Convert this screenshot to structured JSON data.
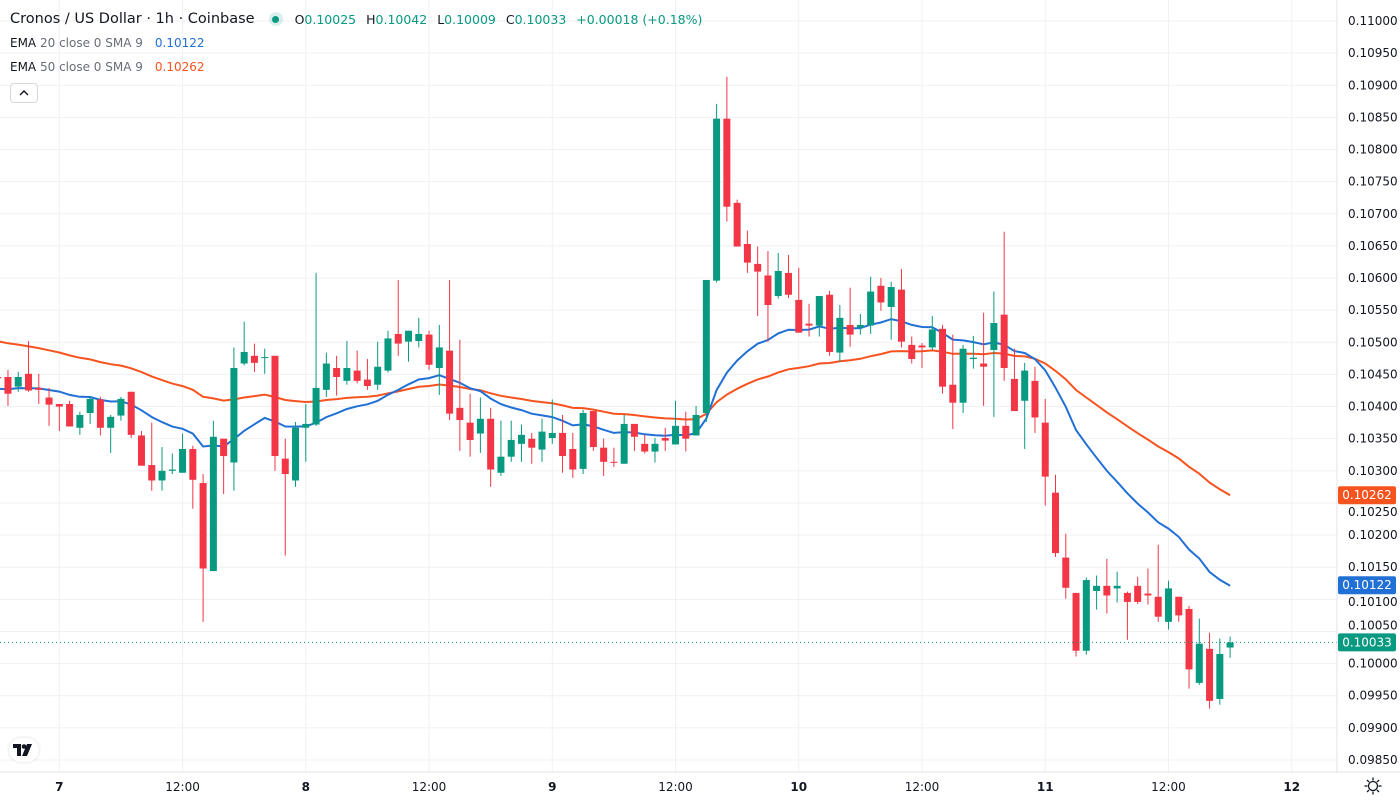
{
  "header": {
    "title": "Cronos / US Dollar · 1h · Coinbase",
    "ohlc": {
      "o_label": "O",
      "o": "0.10025",
      "h_label": "H",
      "h": "0.10042",
      "l_label": "L",
      "l": "0.10009",
      "c_label": "C",
      "c": "0.10033",
      "change": "+0.00018 (+0.18%)"
    },
    "indicators": [
      {
        "name": "EMA",
        "params": "20 close 0 SMA 9",
        "value": "0.10122",
        "color": "#2170d6"
      },
      {
        "name": "EMA",
        "params": "50 close 0 SMA 9",
        "value": "0.10262",
        "color": "#f7531f"
      }
    ],
    "collapse_icon": "chevron-up-icon"
  },
  "colors": {
    "up": "#089981",
    "down": "#F23645",
    "ema20": "#2170d6",
    "ema50": "#f7531f",
    "grid": "#f0f1f3"
  },
  "chart_data": {
    "type": "candlestick",
    "title": "Cronos / US Dollar · 1h · Coinbase",
    "ylim": [
      0.0983,
      0.1103
    ],
    "y_ticks": [
      "0.11000",
      "0.10950",
      "0.10900",
      "0.10850",
      "0.10800",
      "0.10750",
      "0.10700",
      "0.10650",
      "0.10600",
      "0.10550",
      "0.10500",
      "0.10450",
      "0.10400",
      "0.10350",
      "0.10300",
      "0.10250",
      "0.10200",
      "0.10150",
      "0.10100",
      "0.10050",
      "0.10000",
      "0.09950",
      "0.09900",
      "0.09850"
    ],
    "x_ticks": [
      {
        "label": "7",
        "bold": true
      },
      {
        "label": "12:00"
      },
      {
        "label": "8",
        "bold": true
      },
      {
        "label": "12:00"
      },
      {
        "label": "9",
        "bold": true
      },
      {
        "label": "12:00"
      },
      {
        "label": "10",
        "bold": true
      },
      {
        "label": "12:00"
      },
      {
        "label": "11",
        "bold": true
      },
      {
        "label": "12:00"
      },
      {
        "label": "12",
        "bold": true
      }
    ],
    "first_day_candle_index": 6,
    "ema_seed": {
      "ema20": 0.10426,
      "ema50": 0.10504
    },
    "price_badges": [
      {
        "label": "0.10262",
        "value": 0.10262,
        "series": "ema50"
      },
      {
        "label": "0.10122",
        "value": 0.10122,
        "series": "ema20"
      },
      {
        "label": "0.10033",
        "value": 0.10033,
        "series": "last"
      }
    ],
    "ohlc_columns": [
      "open",
      "high",
      "low",
      "close"
    ],
    "candles": [
      [
        0.10446,
        0.10447,
        0.10443,
        0.10444
      ],
      [
        0.10446,
        0.10457,
        0.10401,
        0.1042
      ],
      [
        0.10431,
        0.10454,
        0.10423,
        0.10446
      ],
      [
        0.10451,
        0.10502,
        0.10423,
        0.10425
      ],
      [
        0.10429,
        0.10451,
        0.10404,
        0.10426
      ],
      [
        0.10414,
        0.10429,
        0.1037,
        0.10403
      ],
      [
        0.10404,
        0.10404,
        0.10362,
        0.104
      ],
      [
        0.10404,
        0.10409,
        0.10369,
        0.10369
      ],
      [
        0.10367,
        0.10392,
        0.10356,
        0.10387
      ],
      [
        0.1039,
        0.10415,
        0.10373,
        0.10412
      ],
      [
        0.10411,
        0.10415,
        0.10355,
        0.10367
      ],
      [
        0.10367,
        0.10387,
        0.10328,
        0.10384
      ],
      [
        0.10386,
        0.10415,
        0.10378,
        0.10412
      ],
      [
        0.10423,
        0.10423,
        0.10351,
        0.10356
      ],
      [
        0.10355,
        0.10362,
        0.10308,
        0.10308
      ],
      [
        0.10309,
        0.10375,
        0.10269,
        0.10285
      ],
      [
        0.10285,
        0.10337,
        0.10269,
        0.103
      ],
      [
        0.103,
        0.10327,
        0.10295,
        0.10302
      ],
      [
        0.10297,
        0.10358,
        0.10297,
        0.10334
      ],
      [
        0.10334,
        0.10339,
        0.10241,
        0.10286
      ],
      [
        0.10281,
        0.10295,
        0.10065,
        0.10148
      ],
      [
        0.10144,
        0.10378,
        0.10144,
        0.10353
      ],
      [
        0.1035,
        0.1035,
        0.10264,
        0.10323
      ],
      [
        0.10313,
        0.10492,
        0.10269,
        0.1046
      ],
      [
        0.10467,
        0.10532,
        0.10464,
        0.10485
      ],
      [
        0.10479,
        0.10498,
        0.10454,
        0.10468
      ],
      [
        0.10476,
        0.1049,
        0.10451,
        0.10477
      ],
      [
        0.10479,
        0.10479,
        0.103,
        0.10323
      ],
      [
        0.10319,
        0.1035,
        0.10168,
        0.10295
      ],
      [
        0.10285,
        0.10376,
        0.10275,
        0.10367
      ],
      [
        0.10367,
        0.10404,
        0.10314,
        0.10373
      ],
      [
        0.10372,
        0.10608,
        0.1037,
        0.10429
      ],
      [
        0.10426,
        0.10484,
        0.10415,
        0.10467
      ],
      [
        0.1046,
        0.10479,
        0.10417,
        0.10446
      ],
      [
        0.1044,
        0.10502,
        0.10434,
        0.1046
      ],
      [
        0.10456,
        0.10487,
        0.10436,
        0.1044
      ],
      [
        0.10442,
        0.10474,
        0.10426,
        0.10432
      ],
      [
        0.10434,
        0.10501,
        0.10426,
        0.10462
      ],
      [
        0.10456,
        0.10518,
        0.10453,
        0.10506
      ],
      [
        0.10513,
        0.10597,
        0.10479,
        0.10498
      ],
      [
        0.10501,
        0.10518,
        0.1047,
        0.10518
      ],
      [
        0.10502,
        0.10538,
        0.10492,
        0.10513
      ],
      [
        0.10512,
        0.10518,
        0.10457,
        0.10465
      ],
      [
        0.1046,
        0.10527,
        0.10418,
        0.10492
      ],
      [
        0.10487,
        0.10597,
        0.10379,
        0.10389
      ],
      [
        0.10398,
        0.10504,
        0.10331,
        0.10379
      ],
      [
        0.10375,
        0.1042,
        0.10322,
        0.10348
      ],
      [
        0.10358,
        0.10414,
        0.10328,
        0.10381
      ],
      [
        0.10381,
        0.10398,
        0.10275,
        0.10302
      ],
      [
        0.10297,
        0.10378,
        0.10292,
        0.10322
      ],
      [
        0.10322,
        0.10378,
        0.10314,
        0.10348
      ],
      [
        0.10342,
        0.10372,
        0.10314,
        0.10356
      ],
      [
        0.1035,
        0.10359,
        0.10311,
        0.10336
      ],
      [
        0.10333,
        0.10381,
        0.10314,
        0.10361
      ],
      [
        0.10351,
        0.10411,
        0.10342,
        0.10359
      ],
      [
        0.10359,
        0.10387,
        0.10297,
        0.10323
      ],
      [
        0.10334,
        0.10359,
        0.10289,
        0.10302
      ],
      [
        0.10303,
        0.10395,
        0.10295,
        0.1039
      ],
      [
        0.10393,
        0.10393,
        0.10331,
        0.10337
      ],
      [
        0.10336,
        0.1035,
        0.10292,
        0.10314
      ],
      [
        0.10314,
        0.10336,
        0.10306,
        0.10313
      ],
      [
        0.10311,
        0.10387,
        0.10311,
        0.10373
      ],
      [
        0.10373,
        0.10373,
        0.10331,
        0.10353
      ],
      [
        0.10342,
        0.10356,
        0.10327,
        0.1033
      ],
      [
        0.1033,
        0.10351,
        0.10313,
        0.10342
      ],
      [
        0.10351,
        0.10367,
        0.10331,
        0.10347
      ],
      [
        0.10341,
        0.10409,
        0.10341,
        0.1037
      ],
      [
        0.1037,
        0.10392,
        0.1033,
        0.1035
      ],
      [
        0.10355,
        0.10401,
        0.10355,
        0.10387
      ],
      [
        0.1039,
        0.10597,
        0.10376,
        0.10597
      ],
      [
        0.10596,
        0.10871,
        0.10593,
        0.10848
      ],
      [
        0.10848,
        0.10913,
        0.10688,
        0.10711
      ],
      [
        0.10717,
        0.10722,
        0.10649,
        0.10649
      ],
      [
        0.10653,
        0.10674,
        0.10608,
        0.10624
      ],
      [
        0.10622,
        0.10649,
        0.10541,
        0.1061
      ],
      [
        0.10604,
        0.10642,
        0.10501,
        0.10558
      ],
      [
        0.10572,
        0.10639,
        0.10568,
        0.10611
      ],
      [
        0.10608,
        0.10636,
        0.10569,
        0.10574
      ],
      [
        0.10566,
        0.10616,
        0.10515,
        0.10515
      ],
      [
        0.10529,
        0.1056,
        0.10509,
        0.10526
      ],
      [
        0.10526,
        0.10572,
        0.10509,
        0.10572
      ],
      [
        0.10574,
        0.1058,
        0.10479,
        0.10485
      ],
      [
        0.10484,
        0.10558,
        0.1047,
        0.10538
      ],
      [
        0.10527,
        0.10585,
        0.10493,
        0.10512
      ],
      [
        0.10523,
        0.10544,
        0.10512,
        0.10527
      ],
      [
        0.10526,
        0.10602,
        0.10513,
        0.10579
      ],
      [
        0.10588,
        0.106,
        0.10549,
        0.10562
      ],
      [
        0.10555,
        0.10594,
        0.10504,
        0.10586
      ],
      [
        0.10582,
        0.10614,
        0.10492,
        0.10501
      ],
      [
        0.10496,
        0.10509,
        0.10467,
        0.10474
      ],
      [
        0.10495,
        0.10499,
        0.1046,
        0.10492
      ],
      [
        0.10492,
        0.10541,
        0.10488,
        0.1052
      ],
      [
        0.10521,
        0.10527,
        0.1042,
        0.10431
      ],
      [
        0.10434,
        0.10512,
        0.10365,
        0.10406
      ],
      [
        0.10406,
        0.10496,
        0.1039,
        0.1049
      ],
      [
        0.10474,
        0.1051,
        0.10459,
        0.10476
      ],
      [
        0.10467,
        0.10546,
        0.10401,
        0.10462
      ],
      [
        0.10488,
        0.10579,
        0.10384,
        0.1053
      ],
      [
        0.10543,
        0.10672,
        0.1044,
        0.1046
      ],
      [
        0.10443,
        0.1049,
        0.10393,
        0.10393
      ],
      [
        0.10409,
        0.10468,
        0.10334,
        0.10456
      ],
      [
        0.1044,
        0.10462,
        0.10359,
        0.10383
      ],
      [
        0.10375,
        0.10412,
        0.10246,
        0.10291
      ],
      [
        0.10266,
        0.10294,
        0.10166,
        0.10172
      ],
      [
        0.10165,
        0.10202,
        0.10101,
        0.10118
      ],
      [
        0.1011,
        0.1011,
        0.10011,
        0.1002
      ],
      [
        0.1002,
        0.10134,
        0.10014,
        0.1013
      ],
      [
        0.10113,
        0.10137,
        0.10084,
        0.10121
      ],
      [
        0.10121,
        0.10163,
        0.10078,
        0.10106
      ],
      [
        0.10117,
        0.10143,
        0.10095,
        0.10121
      ],
      [
        0.1011,
        0.10112,
        0.10037,
        0.10096
      ],
      [
        0.10121,
        0.10135,
        0.10093,
        0.10096
      ],
      [
        0.10109,
        0.10148,
        0.10092,
        0.10106
      ],
      [
        0.10104,
        0.10185,
        0.10065,
        0.10073
      ],
      [
        0.10065,
        0.10129,
        0.10053,
        0.10117
      ],
      [
        0.10104,
        0.10104,
        0.10065,
        0.10075
      ],
      [
        0.10085,
        0.1009,
        0.09961,
        0.09991
      ],
      [
        0.0997,
        0.1007,
        0.09967,
        0.10031
      ],
      [
        0.10023,
        0.10048,
        0.0993,
        0.09942
      ],
      [
        0.09945,
        0.10039,
        0.09936,
        0.10015
      ],
      [
        0.10025,
        0.10042,
        0.10009,
        0.10033
      ]
    ]
  }
}
